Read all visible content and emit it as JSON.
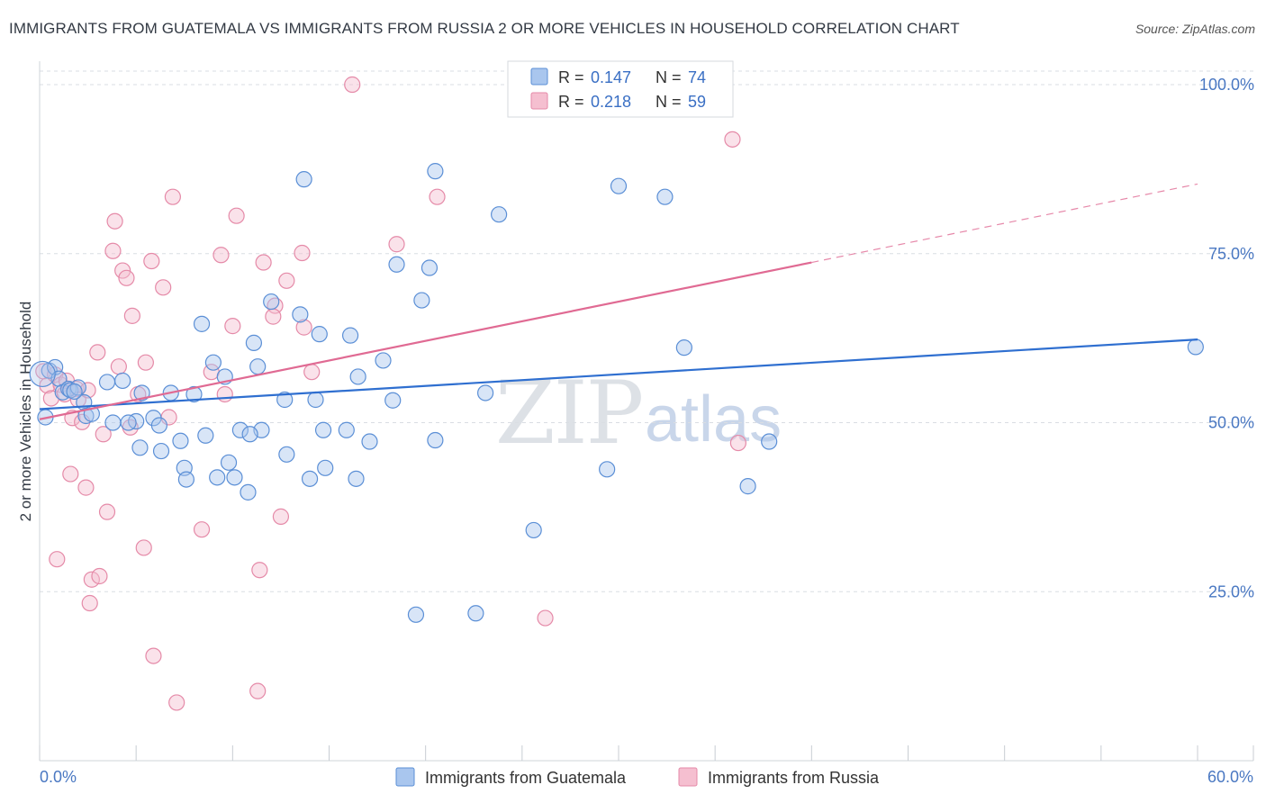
{
  "title": "IMMIGRANTS FROM GUATEMALA VS IMMIGRANTS FROM RUSSIA 2 OR MORE VEHICLES IN HOUSEHOLD CORRELATION CHART",
  "source": "Source: ZipAtlas.com",
  "watermark": {
    "zip": "ZIP",
    "atlas": "atlas"
  },
  "colors": {
    "blue_fill": "#a9c6ee",
    "blue_stroke": "#5b8fd6",
    "blue_line": "#2f6fd0",
    "pink_fill": "#f5bfd0",
    "pink_stroke": "#e58aa8",
    "pink_line": "#e06a93",
    "grid": "#d9dde3",
    "tick_text": "#4a78c2"
  },
  "legend": {
    "rows": [
      {
        "r_label": "R =",
        "r_value": "0.147",
        "n_label": "N =",
        "n_value": "74"
      },
      {
        "r_label": "R =",
        "r_value": "0.218",
        "n_label": "N =",
        "n_value": "59"
      }
    ]
  },
  "chart_data": {
    "type": "scatter",
    "title": "IMMIGRANTS FROM GUATEMALA VS IMMIGRANTS FROM RUSSIA 2 OR MORE VEHICLES IN HOUSEHOLD CORRELATION CHART",
    "xlabel": "",
    "ylabel": "2 or more Vehicles in Household",
    "xlim": [
      0,
      60
    ],
    "ylim": [
      0,
      102
    ],
    "x_tick_labels": [
      "0.0%",
      "60.0%"
    ],
    "y_ticks": [
      25,
      50,
      75,
      100
    ],
    "y_tick_labels": [
      "25.0%",
      "50.0%",
      "75.0%",
      "100.0%"
    ],
    "legend_position": "bottom",
    "series": [
      {
        "name": "Immigrants from Guatemala",
        "r": 0.147,
        "n": 74,
        "trend": {
          "x": [
            0,
            60
          ],
          "y": [
            52.0,
            62.3
          ],
          "dashed_from": null
        },
        "points": [
          [
            0.3,
            50.8
          ],
          [
            0.5,
            57.7
          ],
          [
            0.8,
            58.2
          ],
          [
            1.0,
            56.5
          ],
          [
            1.2,
            54.5
          ],
          [
            1.5,
            55.0
          ],
          [
            1.6,
            54.8
          ],
          [
            2.0,
            55.2
          ],
          [
            2.3,
            53.0
          ],
          [
            2.4,
            51.0
          ],
          [
            3.5,
            56.0
          ],
          [
            3.8,
            50.0
          ],
          [
            4.3,
            56.2
          ],
          [
            5.0,
            50.2
          ],
          [
            5.2,
            46.3
          ],
          [
            5.3,
            54.4
          ],
          [
            5.9,
            50.7
          ],
          [
            6.2,
            49.6
          ],
          [
            6.3,
            45.8
          ],
          [
            6.8,
            54.4
          ],
          [
            7.3,
            47.3
          ],
          [
            7.5,
            43.3
          ],
          [
            7.6,
            41.6
          ],
          [
            8.0,
            54.2
          ],
          [
            8.4,
            64.6
          ],
          [
            8.6,
            48.1
          ],
          [
            9.0,
            58.9
          ],
          [
            9.2,
            41.9
          ],
          [
            9.6,
            56.8
          ],
          [
            9.8,
            44.1
          ],
          [
            10.1,
            41.9
          ],
          [
            10.4,
            48.9
          ],
          [
            10.8,
            39.7
          ],
          [
            11.1,
            61.8
          ],
          [
            11.3,
            58.3
          ],
          [
            11.5,
            48.9
          ],
          [
            12.0,
            67.9
          ],
          [
            12.7,
            53.4
          ],
          [
            12.8,
            45.3
          ],
          [
            13.5,
            66.0
          ],
          [
            13.7,
            86.0
          ],
          [
            14.0,
            41.7
          ],
          [
            14.3,
            53.4
          ],
          [
            14.5,
            63.1
          ],
          [
            14.7,
            48.9
          ],
          [
            14.8,
            43.3
          ],
          [
            15.9,
            48.9
          ],
          [
            16.1,
            62.9
          ],
          [
            16.4,
            41.7
          ],
          [
            16.5,
            56.8
          ],
          [
            17.1,
            47.2
          ],
          [
            17.8,
            59.2
          ],
          [
            18.3,
            53.3
          ],
          [
            18.5,
            73.4
          ],
          [
            19.5,
            21.6
          ],
          [
            19.8,
            68.1
          ],
          [
            20.2,
            72.9
          ],
          [
            20.5,
            87.2
          ],
          [
            20.5,
            47.4
          ],
          [
            22.6,
            21.8
          ],
          [
            23.1,
            54.4
          ],
          [
            23.8,
            80.8
          ],
          [
            25.6,
            34.1
          ],
          [
            29.4,
            43.1
          ],
          [
            30.0,
            85.0
          ],
          [
            32.4,
            83.4
          ],
          [
            33.4,
            61.1
          ],
          [
            36.7,
            40.6
          ],
          [
            37.8,
            47.2
          ],
          [
            59.9,
            61.2
          ],
          [
            1.8,
            54.6
          ],
          [
            2.7,
            51.3
          ],
          [
            4.6,
            50.0
          ],
          [
            10.9,
            48.3
          ]
        ]
      },
      {
        "name": "Immigrants from Russia",
        "r": 0.218,
        "n": 59,
        "trend": {
          "x": [
            0,
            60
          ],
          "y": [
            50.5,
            85.3
          ],
          "dashed_from": 40.0
        },
        "points": [
          [
            0.2,
            57.6
          ],
          [
            0.4,
            55.5
          ],
          [
            0.6,
            53.6
          ],
          [
            0.8,
            57.1
          ],
          [
            0.9,
            29.8
          ],
          [
            1.1,
            55.6
          ],
          [
            1.3,
            54.2
          ],
          [
            1.6,
            42.4
          ],
          [
            1.7,
            50.7
          ],
          [
            1.9,
            55.0
          ],
          [
            2.0,
            53.4
          ],
          [
            2.2,
            50.1
          ],
          [
            2.4,
            40.4
          ],
          [
            2.6,
            23.3
          ],
          [
            2.7,
            26.8
          ],
          [
            3.0,
            60.4
          ],
          [
            3.1,
            27.3
          ],
          [
            3.3,
            48.3
          ],
          [
            3.5,
            36.8
          ],
          [
            3.8,
            75.4
          ],
          [
            3.9,
            79.8
          ],
          [
            4.1,
            58.3
          ],
          [
            4.3,
            72.5
          ],
          [
            4.5,
            71.4
          ],
          [
            4.7,
            49.3
          ],
          [
            4.8,
            65.8
          ],
          [
            5.1,
            54.2
          ],
          [
            5.4,
            31.5
          ],
          [
            5.5,
            58.9
          ],
          [
            5.8,
            73.9
          ],
          [
            5.9,
            15.5
          ],
          [
            6.4,
            70.0
          ],
          [
            6.7,
            50.8
          ],
          [
            6.9,
            83.4
          ],
          [
            7.1,
            8.6
          ],
          [
            8.4,
            34.2
          ],
          [
            8.9,
            57.5
          ],
          [
            9.4,
            74.8
          ],
          [
            9.6,
            54.2
          ],
          [
            10.0,
            64.3
          ],
          [
            10.2,
            80.6
          ],
          [
            11.3,
            10.3
          ],
          [
            11.4,
            28.2
          ],
          [
            11.6,
            73.7
          ],
          [
            12.2,
            67.3
          ],
          [
            12.5,
            36.1
          ],
          [
            12.8,
            71.0
          ],
          [
            13.6,
            75.1
          ],
          [
            13.7,
            64.1
          ],
          [
            14.1,
            57.5
          ],
          [
            16.2,
            100.0
          ],
          [
            18.5,
            76.4
          ],
          [
            20.6,
            83.4
          ],
          [
            26.2,
            21.1
          ],
          [
            35.9,
            91.9
          ],
          [
            36.2,
            47.0
          ],
          [
            1.4,
            56.2
          ],
          [
            2.5,
            54.8
          ],
          [
            12.1,
            65.7
          ]
        ]
      }
    ]
  }
}
